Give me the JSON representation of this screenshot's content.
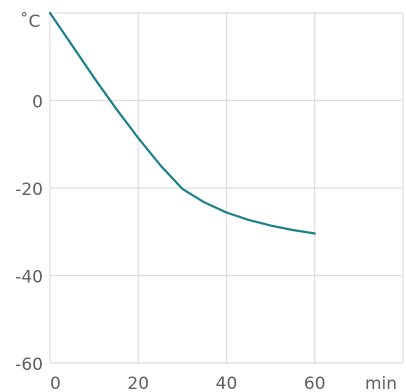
{
  "chart_data": {
    "type": "line",
    "title": "",
    "xlabel": "min",
    "ylabel": "˚C",
    "xlim": [
      0,
      80
    ],
    "ylim": [
      -60,
      20
    ],
    "xticks": [
      0,
      20,
      40,
      60
    ],
    "yticks": [
      0,
      -20,
      -40,
      -60
    ],
    "grid": true,
    "colors": {
      "series": "#1a8088",
      "grid": "#dedede",
      "text": "#606060"
    },
    "series": [
      {
        "x": [
          0,
          5,
          10,
          15,
          20,
          25,
          30,
          35,
          40,
          45,
          50,
          55,
          60
        ],
        "y": [
          20,
          12.6,
          5.2,
          -1.9,
          -8.6,
          -14.8,
          -20.2,
          -23.3,
          -25.6,
          -27.3,
          -28.6,
          -29.6,
          -30.4
        ]
      }
    ]
  }
}
